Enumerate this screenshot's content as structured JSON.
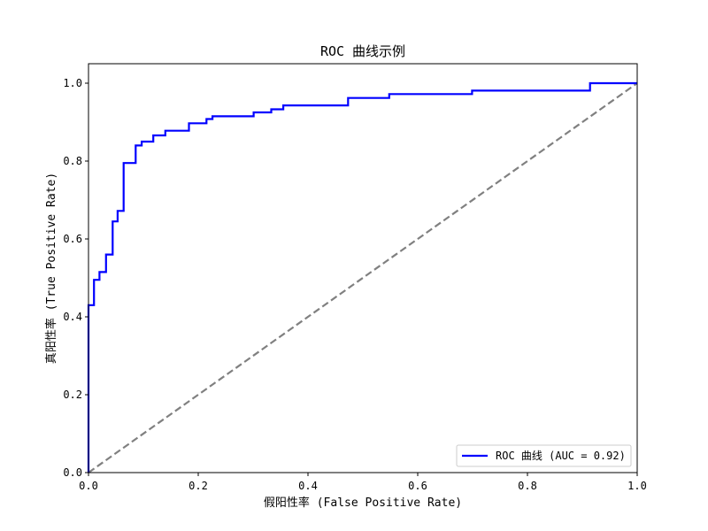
{
  "chart_data": {
    "type": "line",
    "title": "ROC 曲线示例",
    "xlabel": "假阳性率 (False Positive Rate)",
    "ylabel": "真阳性率 (True Positive Rate)",
    "xlim": [
      0,
      1
    ],
    "ylim": [
      0,
      1.05
    ],
    "xticks": [
      "0.0",
      "0.2",
      "0.4",
      "0.6",
      "0.8",
      "1.0"
    ],
    "yticks": [
      "0.0",
      "0.2",
      "0.4",
      "0.6",
      "0.8",
      "1.0"
    ],
    "grid": false,
    "legend_position": "bottom-right",
    "series": [
      {
        "name": "ROC 曲线 (AUC = 0.92)",
        "color": "#0000ff",
        "style": "solid",
        "step": true,
        "points": [
          [
            0.0,
            0.0
          ],
          [
            0.0,
            0.43
          ],
          [
            0.01,
            0.43
          ],
          [
            0.01,
            0.495
          ],
          [
            0.02,
            0.495
          ],
          [
            0.02,
            0.515
          ],
          [
            0.032,
            0.515
          ],
          [
            0.032,
            0.56
          ],
          [
            0.044,
            0.56
          ],
          [
            0.044,
            0.645
          ],
          [
            0.053,
            0.645
          ],
          [
            0.053,
            0.672
          ],
          [
            0.064,
            0.672
          ],
          [
            0.064,
            0.795
          ],
          [
            0.086,
            0.795
          ],
          [
            0.086,
            0.84
          ],
          [
            0.097,
            0.84
          ],
          [
            0.097,
            0.85
          ],
          [
            0.118,
            0.85
          ],
          [
            0.118,
            0.866
          ],
          [
            0.14,
            0.866
          ],
          [
            0.14,
            0.878
          ],
          [
            0.183,
            0.878
          ],
          [
            0.183,
            0.897
          ],
          [
            0.215,
            0.897
          ],
          [
            0.215,
            0.908
          ],
          [
            0.226,
            0.908
          ],
          [
            0.226,
            0.915
          ],
          [
            0.301,
            0.915
          ],
          [
            0.301,
            0.925
          ],
          [
            0.333,
            0.925
          ],
          [
            0.333,
            0.933
          ],
          [
            0.355,
            0.933
          ],
          [
            0.355,
            0.943
          ],
          [
            0.473,
            0.943
          ],
          [
            0.473,
            0.962
          ],
          [
            0.548,
            0.962
          ],
          [
            0.548,
            0.972
          ],
          [
            0.699,
            0.972
          ],
          [
            0.699,
            0.981
          ],
          [
            0.914,
            0.981
          ],
          [
            0.914,
            1.0
          ],
          [
            1.0,
            1.0
          ]
        ]
      },
      {
        "name": "",
        "color": "#808080",
        "style": "dashed",
        "step": false,
        "points": [
          [
            0.0,
            0.0
          ],
          [
            1.0,
            1.0
          ]
        ]
      }
    ]
  }
}
